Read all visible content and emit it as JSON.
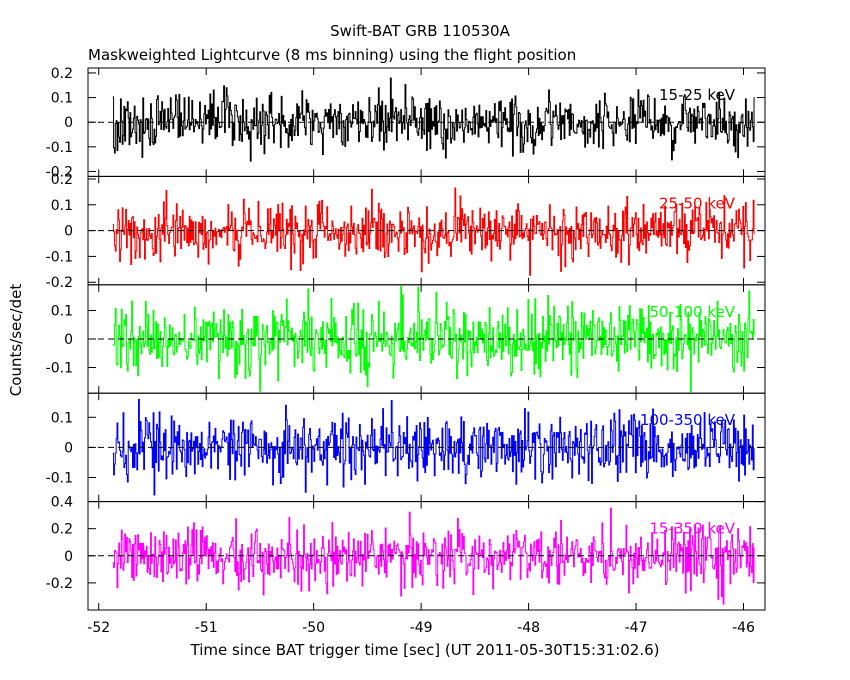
{
  "chart_data": {
    "type": "line",
    "title": "Swift-BAT GRB 110530A",
    "subtitle": "Maskweighted Lightcurve (8 ms binning) using the flight position",
    "xlabel": "Time since BAT trigger time [sec] (UT 2011-05-30T15:31:02.6)",
    "ylabel": "Counts/sec/det",
    "xlim": [
      -52.1,
      -45.8
    ],
    "x_ticks": [
      "-52",
      "-51",
      "-50",
      "-49",
      "-48",
      "-47",
      "-46"
    ],
    "x_range_data": [
      -51.87,
      -45.9
    ],
    "bin_width_s": 0.008,
    "reference_line_y": 0,
    "series": [
      {
        "name": "15-25 keV",
        "color": "#000000",
        "ylim": [
          -0.22,
          0.22
        ],
        "y_ticks": [
          "0.2",
          "0.1",
          "0",
          "-0.1",
          "-0.2"
        ],
        "amplitude": 0.055,
        "values_summary": "noise centred on 0, typical spread about +/-0.1"
      },
      {
        "name": "25-50 keV",
        "color": "#ff0000",
        "ylim": [
          -0.21,
          0.21
        ],
        "y_ticks": [
          "0.2",
          "0.1",
          "0",
          "-0.1",
          "-0.2"
        ],
        "amplitude": 0.055,
        "values_summary": "noise centred on 0, typical spread about +/-0.12"
      },
      {
        "name": "50-100 keV",
        "color": "#00ff00",
        "ylim": [
          -0.19,
          0.19
        ],
        "y_ticks": [
          "0.1",
          "0",
          "-0.1"
        ],
        "amplitude": 0.06,
        "values_summary": "noise centred on 0, typical spread about +/-0.13"
      },
      {
        "name": "100-350 keV",
        "color": "#0000ff",
        "ylim": [
          -0.18,
          0.18
        ],
        "y_ticks": [
          "0.1",
          "0",
          "-0.1"
        ],
        "amplitude": 0.052,
        "values_summary": "noise centred on 0, typical spread about +/-0.1"
      },
      {
        "name": "15-350 keV",
        "color": "#ff00ff",
        "ylim": [
          -0.4,
          0.4
        ],
        "y_ticks": [
          "0.4",
          "0.2",
          "0",
          "-0.2"
        ],
        "amplitude": 0.11,
        "values_summary": "noise centred on 0, typical spread about +/-0.25"
      }
    ]
  }
}
